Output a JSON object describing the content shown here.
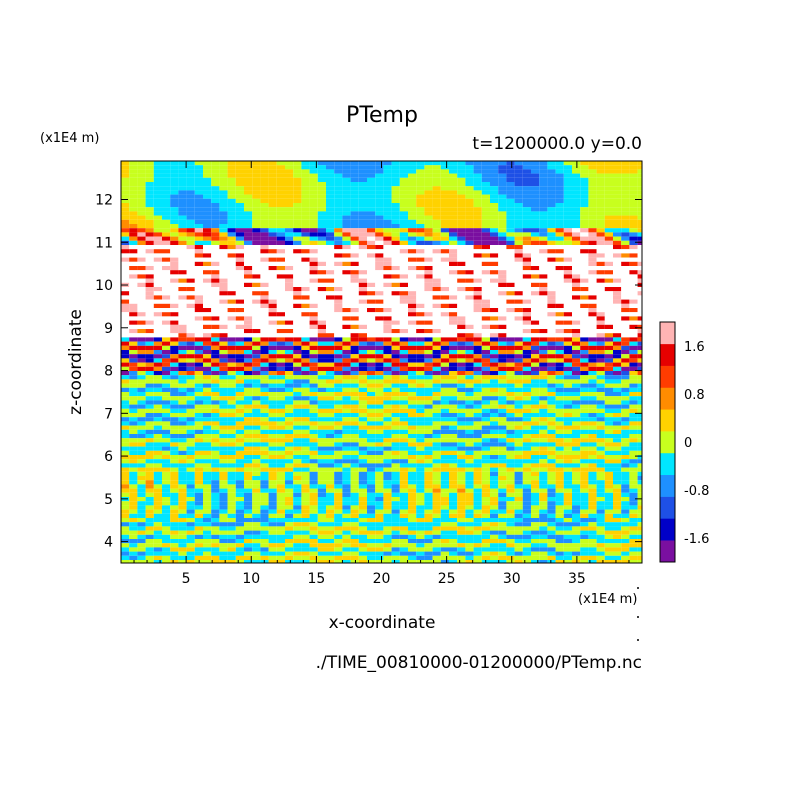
{
  "chart_data": {
    "type": "heatmap",
    "title": "PTemp",
    "subtitle": "t=1200000.0 y=0.0",
    "xlabel": "x-coordinate",
    "ylabel": "z-coordinate",
    "x_unit": "(x1E4 m)",
    "y_unit": "(x1E4 m)",
    "x_ticks": [
      "5",
      "10",
      "15",
      "20",
      "25",
      "30",
      "35"
    ],
    "y_ticks": [
      "4",
      "5",
      "6",
      "7",
      "8",
      "9",
      "10",
      "11",
      "12"
    ],
    "xlim": [
      0,
      40
    ],
    "ylim": [
      3.5,
      12.9
    ],
    "colorbar": {
      "tick_labels": [
        "1.6",
        "0.8",
        "0",
        "-0.8",
        "-1.6"
      ],
      "levels": [
        -2.0,
        -1.6,
        -1.2,
        -0.8,
        -0.4,
        0.0,
        0.4,
        0.8,
        1.2,
        1.6,
        2.0
      ],
      "colors": [
        "#7a0fa0",
        "#0000c8",
        "#1e50e6",
        "#1e90ff",
        "#00e6ff",
        "#c8ff1e",
        "#ffd200",
        "#ff8c00",
        "#ff3c00",
        "#e60000",
        "#ffb4b4"
      ],
      "range": [
        -2.0,
        2.0
      ]
    },
    "grid": false,
    "legend": "colorbar right"
  },
  "footer": {
    "file_path": "./TIME_00810000-01200000/PTemp.nc"
  }
}
